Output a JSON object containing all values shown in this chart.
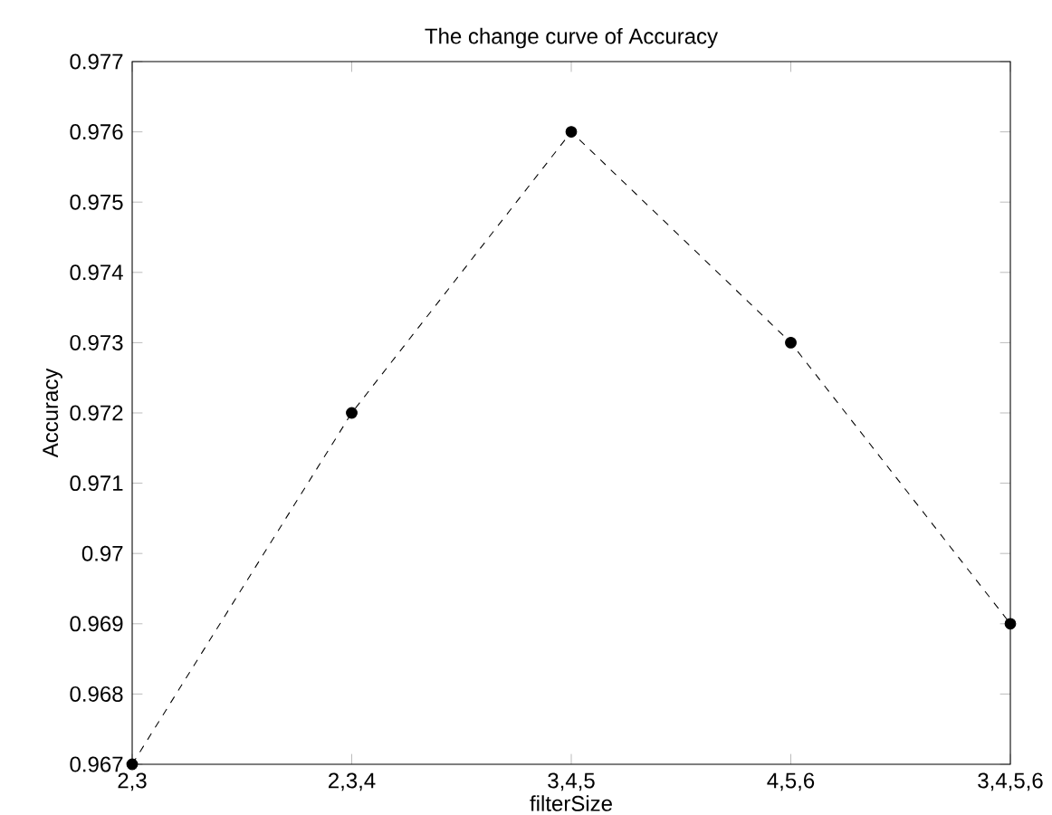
{
  "chart_data": {
    "type": "line",
    "title": "The change curve of Accuracy",
    "xlabel": "filterSize",
    "ylabel": "Accuracy",
    "categories": [
      "2,3",
      "2,3,4",
      "3,4,5",
      "4,5,6",
      "3,4,5,6"
    ],
    "series": [
      {
        "color": "#000000",
        "values": [
          0.967,
          0.972,
          0.976,
          0.973,
          0.969
        ]
      }
    ],
    "ylim": [
      0.967,
      0.977
    ],
    "yticks": [
      0.967,
      0.968,
      0.969,
      0.97,
      0.971,
      0.972,
      0.973,
      0.974,
      0.975,
      0.976,
      0.977
    ],
    "marker": "circle",
    "line_style": "dashed",
    "grid": false
  }
}
